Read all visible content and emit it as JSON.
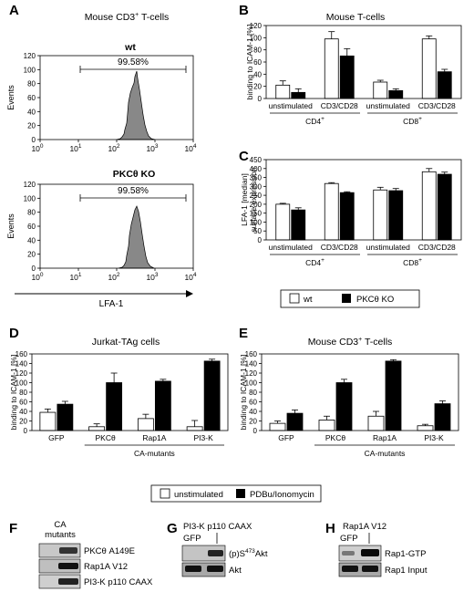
{
  "panels": {
    "A": {
      "letter": "A",
      "title_main": "Mouse CD3",
      "title_sup": "+",
      "title_rest": " T-cells",
      "histograms": [
        {
          "label": "wt",
          "percent": "99.58%",
          "ylabel": "Events",
          "yticks": [
            "0",
            "20",
            "40",
            "60",
            "80",
            "100",
            "120"
          ],
          "xticks": [
            {
              "b": "10",
              "e": "0"
            },
            {
              "b": "10",
              "e": "1"
            },
            {
              "b": "10",
              "e": "2"
            },
            {
              "b": "10",
              "e": "3"
            },
            {
              "b": "10",
              "e": "4"
            }
          ]
        },
        {
          "label_main": "PKC",
          "label_theta": "θ",
          "label_rest": " KO",
          "percent": "99.58%",
          "ylabel": "Events",
          "yticks": [
            "0",
            "20",
            "40",
            "60",
            "80",
            "100",
            "120"
          ],
          "xticks": [
            {
              "b": "10",
              "e": "0"
            },
            {
              "b": "10",
              "e": "1"
            },
            {
              "b": "10",
              "e": "2"
            },
            {
              "b": "10",
              "e": "3"
            },
            {
              "b": "10",
              "e": "4"
            }
          ]
        }
      ],
      "xlabel": "LFA-1"
    },
    "B": {
      "letter": "B",
      "title": "Mouse T-cells"
    },
    "C": {
      "letter": "C"
    },
    "D": {
      "letter": "D",
      "title": "Jurkat-TAg cells"
    },
    "E": {
      "letter": "E",
      "title_main": "Mouse CD3",
      "title_sup": "+",
      "title_rest": " T-cells"
    },
    "F": {
      "letter": "F",
      "header": [
        "CA",
        "mutants"
      ],
      "rows": [
        {
          "main": "PKC",
          "theta": "θ",
          "rest": " A149E"
        },
        {
          "main": "Rap1A V12",
          "theta": "",
          "rest": ""
        },
        {
          "main": "PI3-K p110 CAAX",
          "theta": "",
          "rest": ""
        }
      ]
    },
    "G": {
      "letter": "G",
      "header": "PI3-K p110 CAAX",
      "lane": "GFP",
      "rows": [
        {
          "pre": "(p)S",
          "sup": "473",
          "post": "Akt"
        },
        {
          "pre": "Akt",
          "sup": "",
          "post": ""
        }
      ]
    },
    "H": {
      "letter": "H",
      "header": "Rap1A V12",
      "lane": "GFP",
      "rows": [
        "Rap1-GTP",
        "Rap1 Input"
      ]
    }
  },
  "legends": {
    "BC": [
      {
        "label": "wt",
        "color": "#ffffff"
      },
      {
        "label_main": "PKC",
        "label_theta": "θ",
        "label_rest": " KO",
        "color": "#000000"
      }
    ],
    "DE": [
      {
        "label": "unstimulated",
        "color": "#ffffff"
      },
      {
        "label": "PDBu/Ionomycin",
        "color": "#000000"
      }
    ]
  },
  "chart_data": [
    {
      "id": "B",
      "type": "bar",
      "title": "Mouse T-cells",
      "ylabel": "binding to ICAM-1 [%]",
      "ylim": [
        0,
        120
      ],
      "yticks": [
        0,
        20,
        40,
        60,
        80,
        100,
        120
      ],
      "categories": [
        "unstimulated",
        "CD3/CD28",
        "unstimulated",
        "CD3/CD28"
      ],
      "groups": [
        {
          "label": "CD4",
          "sup": "+",
          "span": [
            0,
            1
          ]
        },
        {
          "label": "CD8",
          "sup": "+",
          "span": [
            2,
            3
          ]
        }
      ],
      "series": [
        {
          "name": "wt",
          "color": "#ffffff",
          "values": [
            22,
            98,
            27,
            98
          ],
          "errors": [
            7,
            12,
            3,
            5
          ]
        },
        {
          "name": "PKCθ KO",
          "color": "#000000",
          "values": [
            10,
            70,
            13,
            44
          ],
          "errors": [
            6,
            12,
            3,
            4
          ]
        }
      ]
    },
    {
      "id": "C",
      "type": "bar",
      "ylabel": "LFA-1 [median] surface expression",
      "ylim": [
        0,
        450
      ],
      "yticks": [
        0,
        50,
        100,
        150,
        200,
        250,
        300,
        350,
        400,
        450
      ],
      "categories": [
        "unstimulated",
        "CD3/CD28",
        "unstimulated",
        "CD3/CD28"
      ],
      "groups": [
        {
          "label": "CD4",
          "sup": "+",
          "span": [
            0,
            1
          ]
        },
        {
          "label": "CD8",
          "sup": "+",
          "span": [
            2,
            3
          ]
        }
      ],
      "series": [
        {
          "name": "wt",
          "color": "#ffffff",
          "values": [
            200,
            316,
            280,
            382
          ],
          "errors": [
            5,
            5,
            15,
            18
          ]
        },
        {
          "name": "PKCθ KO",
          "color": "#000000",
          "values": [
            168,
            265,
            276,
            368
          ],
          "errors": [
            12,
            5,
            12,
            12
          ]
        }
      ]
    },
    {
      "id": "D",
      "type": "bar",
      "title": "Jurkat-TAg cells",
      "ylabel": "binding to ICAM-1 [%]",
      "ylim": [
        0,
        160
      ],
      "yticks": [
        0,
        20,
        40,
        60,
        80,
        100,
        120,
        140,
        160
      ],
      "categories": [
        "GFP",
        "PKCθ",
        "Rap1A",
        "PI3-K"
      ],
      "groups": [
        {
          "label": "CA-mutants",
          "sup": "",
          "span": [
            1,
            3
          ]
        }
      ],
      "series": [
        {
          "name": "unstimulated",
          "color": "#ffffff",
          "values": [
            38,
            8,
            25,
            8
          ],
          "errors": [
            7,
            6,
            9,
            13
          ]
        },
        {
          "name": "PDBu/Ionomycin",
          "color": "#000000",
          "values": [
            55,
            100,
            103,
            145
          ],
          "errors": [
            6,
            20,
            4,
            4
          ]
        }
      ]
    },
    {
      "id": "E",
      "type": "bar",
      "title": "Mouse CD3+ T-cells",
      "ylabel": "binding to ICAM-1 [%]",
      "ylim": [
        0,
        160
      ],
      "yticks": [
        0,
        20,
        40,
        60,
        80,
        100,
        120,
        140,
        160
      ],
      "categories": [
        "GFP",
        "PKCθ",
        "Rap1A",
        "PI3-K"
      ],
      "groups": [
        {
          "label": "CA-mutants",
          "sup": "",
          "span": [
            1,
            3
          ]
        }
      ],
      "series": [
        {
          "name": "unstimulated",
          "color": "#ffffff",
          "values": [
            15,
            22,
            30,
            10
          ],
          "errors": [
            5,
            8,
            10,
            3
          ]
        },
        {
          "name": "PDBu/Ionomycin",
          "color": "#000000",
          "values": [
            36,
            100,
            145,
            56
          ],
          "errors": [
            7,
            7,
            3,
            6
          ]
        }
      ]
    }
  ]
}
